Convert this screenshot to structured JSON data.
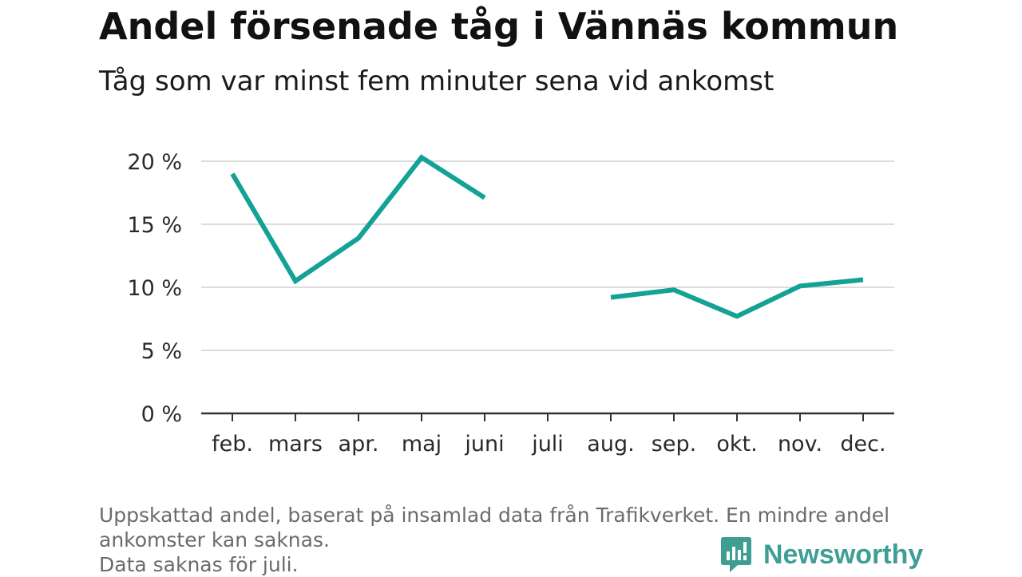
{
  "header": {
    "title": "Andel försenade tåg i Vännäs kommun",
    "subtitle": "Tåg som var minst fem minuter sena vid ankomst"
  },
  "footnote": {
    "line1": "Uppskattad andel, baserat på insamlad data från Trafikverket. En mindre andel",
    "line2": "ankomster kan saknas.",
    "line3": "Data saknas för juli."
  },
  "branding": {
    "name": "Newsworthy",
    "icon": "newsworthy-logo-icon",
    "color": "#3f9e94"
  },
  "chart_data": {
    "type": "line",
    "categories": [
      "feb.",
      "mars",
      "apr.",
      "maj",
      "juni",
      "juli",
      "aug.",
      "sep.",
      "okt.",
      "nov.",
      "dec."
    ],
    "series": [
      {
        "values": [
          19.0,
          10.5,
          13.9,
          20.3,
          17.1,
          null,
          9.2,
          9.8,
          7.7,
          10.1,
          10.6
        ],
        "color": "#13a295"
      }
    ],
    "ylim": [
      0,
      20
    ],
    "yticks": [
      0,
      5,
      10,
      15,
      20
    ],
    "ytick_labels": [
      "0 %",
      "5 %",
      "10 %",
      "15 %",
      "20 %"
    ],
    "grid": true
  }
}
